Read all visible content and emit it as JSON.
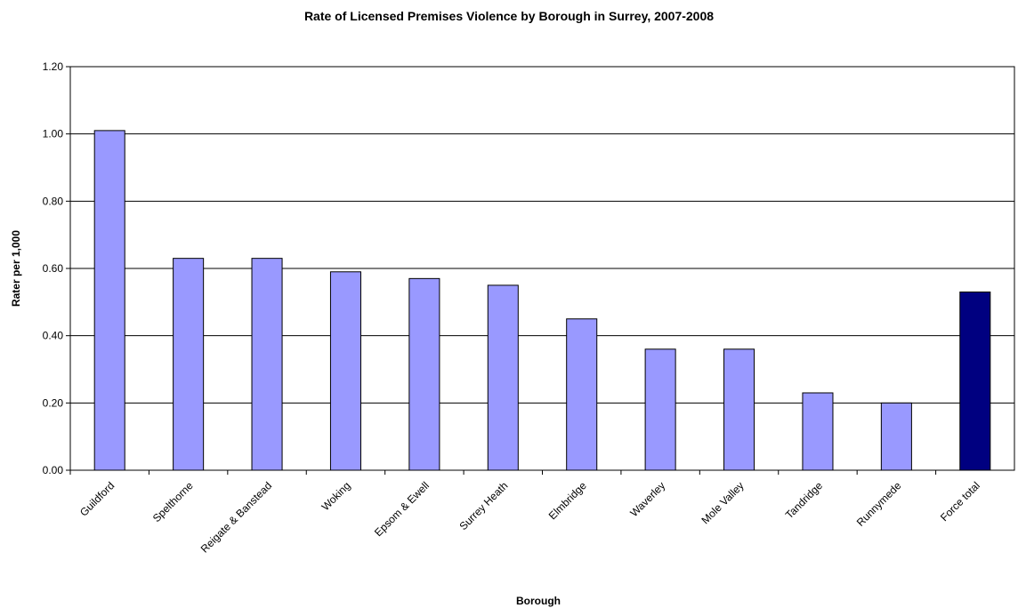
{
  "chart_data": {
    "type": "bar",
    "title": "Rate of Licensed Premises Violence by Borough in Surrey, 2007-2008",
    "xlabel": "Borough",
    "ylabel": "Rater per 1,000",
    "ylim": [
      0,
      1.2
    ],
    "yticks": [
      "0.00",
      "0.20",
      "0.40",
      "0.60",
      "0.80",
      "1.00",
      "1.20"
    ],
    "grid": true,
    "categories": [
      "Guildford",
      "Spelthorne",
      "Reigate & Banstead",
      "Woking",
      "Epsom & Ewell",
      "Surrey Heath",
      "Elmbridge",
      "Waverley",
      "Mole Valley",
      "Tandridge",
      "Runnymede",
      "Force total"
    ],
    "values": [
      1.01,
      0.63,
      0.63,
      0.59,
      0.57,
      0.55,
      0.45,
      0.36,
      0.36,
      0.23,
      0.2,
      0.53
    ],
    "colors": {
      "default_bar": "#9999ff",
      "highlight_bar": "#000080",
      "highlight_category": "Force total",
      "grid": "#000000",
      "plot_border": "#000000"
    }
  }
}
